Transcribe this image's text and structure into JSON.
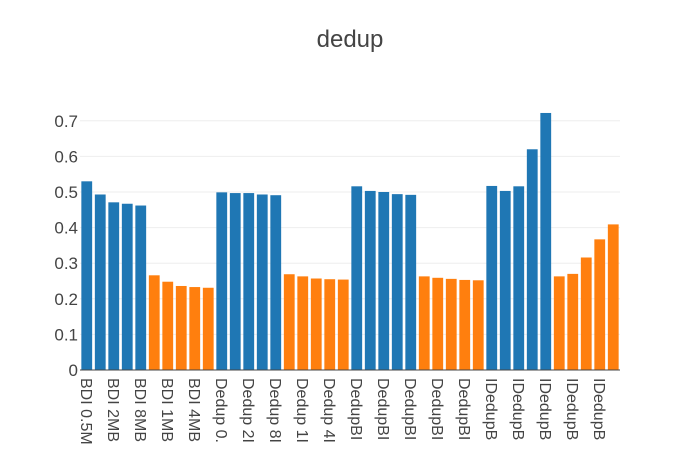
{
  "colors": {
    "series_a": "#1f77b4",
    "series_b": "#ff7f0e",
    "grid": "#eeeeee",
    "text": "#444444"
  },
  "chart_data": {
    "type": "bar",
    "title": "dedup",
    "xlabel": "",
    "ylabel": "",
    "ylim": [
      0,
      0.72
    ],
    "yticks": [
      0,
      0.1,
      0.2,
      0.3,
      0.4,
      0.5,
      0.6,
      0.7
    ],
    "ytick_labels": [
      "0",
      "0.1",
      "0.2",
      "0.3",
      "0.4",
      "0.5",
      "0.6",
      "0.7"
    ],
    "grid": true,
    "legend": "none",
    "visible_tick_labels": [
      "BDI 0.5M",
      "BDI 2MB",
      "BDI 8MB",
      "BDI 1MB",
      "BDI 4MB",
      "Dedup 0.",
      "Dedup 2I",
      "Dedup 8I",
      "Dedup 1I",
      "Dedup 4I",
      "DedupBI",
      "DedupBI",
      "DedupBI",
      "DedupBI",
      "DedupBI",
      "IDedupB",
      "IDedupB",
      "IDedupB",
      "IDedupB",
      "IDedupB"
    ],
    "series": [
      {
        "values": [
          0.53,
          0.493,
          0.471,
          0.467,
          0.462,
          0.0,
          0.0,
          0.0,
          0.0,
          0.0,
          0.499,
          0.497,
          0.497,
          0.493,
          0.491,
          0.0,
          0.0,
          0.0,
          0.0,
          0.0,
          0.516,
          0.503,
          0.5,
          0.494,
          0.492,
          0.0,
          0.0,
          0.0,
          0.0,
          0.0,
          0.517,
          0.503,
          0.516,
          0.62,
          0.722,
          0.0,
          0.0,
          0.0,
          0.0,
          0.0
        ]
      },
      {
        "values": [
          0.0,
          0.0,
          0.0,
          0.0,
          0.0,
          0.266,
          0.248,
          0.236,
          0.233,
          0.231,
          0.0,
          0.0,
          0.0,
          0.0,
          0.0,
          0.269,
          0.263,
          0.257,
          0.255,
          0.254,
          0.0,
          0.0,
          0.0,
          0.0,
          0.0,
          0.263,
          0.259,
          0.256,
          0.253,
          0.252,
          0.0,
          0.0,
          0.0,
          0.0,
          0.0,
          0.263,
          0.27,
          0.316,
          0.367,
          0.409
        ]
      }
    ]
  }
}
